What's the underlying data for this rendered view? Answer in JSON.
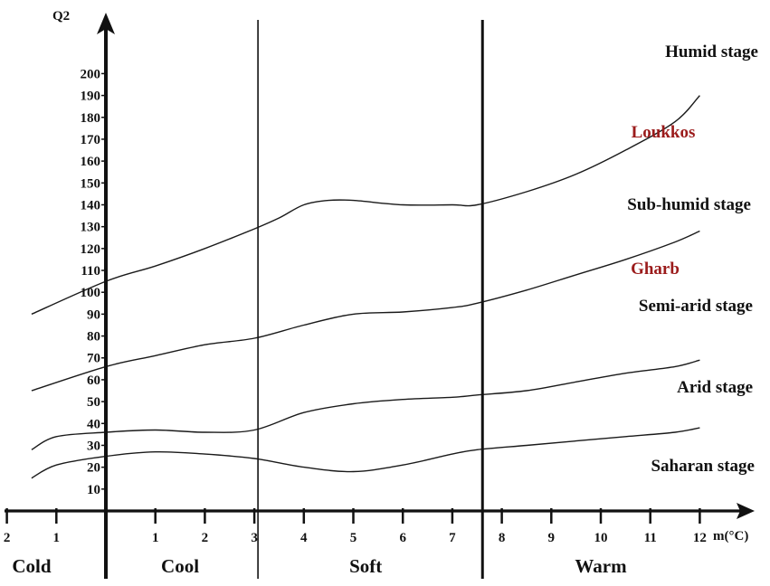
{
  "chart_data": {
    "type": "line",
    "title": "",
    "ylabel": "Q2",
    "xlabel": "m(°C)",
    "ylim": [
      0,
      210
    ],
    "xlim": [
      -2,
      12.5
    ],
    "y_ticks": [
      "10",
      "20",
      "30",
      "40",
      "50",
      "60",
      "70",
      "80",
      "90",
      "100",
      "110",
      "120",
      "130",
      "140",
      "150",
      "160",
      "170",
      "180",
      "190",
      "200"
    ],
    "x_ticks": [
      {
        "value": -2,
        "label": "2"
      },
      {
        "value": -1,
        "label": "1"
      },
      {
        "value": 1,
        "label": "1"
      },
      {
        "value": 2,
        "label": "2"
      },
      {
        "value": 3,
        "label": "3"
      },
      {
        "value": 4,
        "label": "4"
      },
      {
        "value": 5,
        "label": "5"
      },
      {
        "value": 6,
        "label": "6"
      },
      {
        "value": 7,
        "label": "7"
      },
      {
        "value": 8,
        "label": "8"
      },
      {
        "value": 9,
        "label": "9"
      },
      {
        "value": 10,
        "label": "10"
      },
      {
        "value": 11,
        "label": "11"
      },
      {
        "value": 12,
        "label": "12"
      }
    ],
    "zone_dividers": [
      3,
      7.5
    ],
    "zones": [
      {
        "label": "Cold",
        "x_center": -1.5
      },
      {
        "label": "Cool",
        "x_center": 1.5
      },
      {
        "label": "Soft",
        "x_center": 5.25
      },
      {
        "label": "Warm",
        "x_center": 10
      }
    ],
    "boundaries": [
      {
        "id": "humid-subhumid",
        "points": [
          [
            -1.5,
            90
          ],
          [
            0,
            105
          ],
          [
            1,
            112
          ],
          [
            2,
            120
          ],
          [
            3,
            129
          ],
          [
            3.5,
            134
          ],
          [
            4,
            140
          ],
          [
            4.5,
            142
          ],
          [
            5,
            142
          ],
          [
            6,
            140
          ],
          [
            7,
            140
          ],
          [
            7.5,
            140
          ],
          [
            8.5,
            146
          ],
          [
            9.5,
            154
          ],
          [
            10.5,
            165
          ],
          [
            11.5,
            178
          ],
          [
            12,
            190
          ]
        ]
      },
      {
        "id": "subhumid-semiarid",
        "points": [
          [
            -1.5,
            55
          ],
          [
            0,
            66
          ],
          [
            1,
            71
          ],
          [
            2,
            76
          ],
          [
            3,
            79
          ],
          [
            4,
            85
          ],
          [
            5,
            90
          ],
          [
            6,
            91
          ],
          [
            7,
            93
          ],
          [
            7.5,
            95
          ],
          [
            8.5,
            101
          ],
          [
            9.5,
            108
          ],
          [
            10.5,
            115
          ],
          [
            11.5,
            123
          ],
          [
            12,
            128
          ]
        ]
      },
      {
        "id": "semiarid-arid",
        "points": [
          [
            -1.5,
            28
          ],
          [
            -1,
            34
          ],
          [
            0,
            36
          ],
          [
            1,
            37
          ],
          [
            2,
            36
          ],
          [
            3,
            37
          ],
          [
            4,
            45
          ],
          [
            5,
            49
          ],
          [
            6,
            51
          ],
          [
            7,
            52
          ],
          [
            7.5,
            53
          ],
          [
            8.5,
            55
          ],
          [
            9.5,
            59
          ],
          [
            10.5,
            63
          ],
          [
            11.5,
            66
          ],
          [
            12,
            69
          ]
        ]
      },
      {
        "id": "arid-saharan",
        "points": [
          [
            -1.5,
            15
          ],
          [
            -1,
            21
          ],
          [
            0,
            25
          ],
          [
            1,
            27
          ],
          [
            2,
            26
          ],
          [
            3,
            24
          ],
          [
            4,
            20
          ],
          [
            5,
            18
          ],
          [
            6,
            21
          ],
          [
            7,
            26
          ],
          [
            7.5,
            28
          ],
          [
            8.5,
            30
          ],
          [
            9.5,
            32
          ],
          [
            10.5,
            34
          ],
          [
            11.5,
            36
          ],
          [
            12,
            38
          ]
        ]
      }
    ],
    "stage_labels": [
      "Humid stage",
      "Sub-humid stage",
      "Semi-arid stage",
      "Arid stage",
      "Saharan stage"
    ],
    "region_labels": [
      "Loukkos",
      "Gharb"
    ],
    "colors": {
      "line": "#1a1a1a",
      "region": "#9b1b1b",
      "background": "#ffffff"
    }
  }
}
